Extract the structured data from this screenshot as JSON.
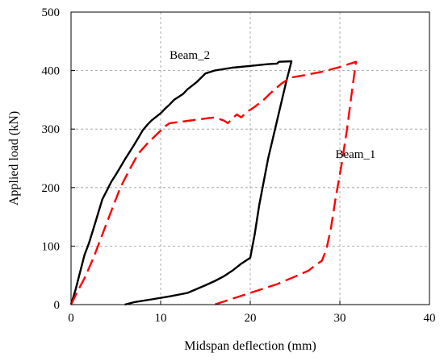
{
  "chart_data": {
    "type": "line",
    "title": "",
    "xlabel": "Midspan deflection (mm)",
    "ylabel": "Applied load (kN)",
    "xlim": [
      0,
      40
    ],
    "ylim": [
      0,
      500
    ],
    "xticks": [
      0,
      10,
      20,
      30,
      40
    ],
    "yticks": [
      0,
      100,
      200,
      300,
      400,
      500
    ],
    "grid": true,
    "legend": "none",
    "series": [
      {
        "name": "Beam_2",
        "color": "#000000",
        "line_style": "solid",
        "points": [
          [
            0,
            0
          ],
          [
            0.5,
            25
          ],
          [
            1,
            55
          ],
          [
            1.5,
            85
          ],
          [
            2,
            105
          ],
          [
            2.5,
            130
          ],
          [
            3,
            155
          ],
          [
            3.5,
            180
          ],
          [
            4,
            195
          ],
          [
            4.5,
            210
          ],
          [
            5,
            222
          ],
          [
            5.5,
            235
          ],
          [
            6,
            248
          ],
          [
            6.5,
            260
          ],
          [
            7,
            272
          ],
          [
            7.5,
            285
          ],
          [
            8,
            298
          ],
          [
            8.5,
            307
          ],
          [
            9,
            315
          ],
          [
            10,
            327
          ],
          [
            10.5,
            335
          ],
          [
            11,
            342
          ],
          [
            11.5,
            350
          ],
          [
            12,
            355
          ],
          [
            12.5,
            360
          ],
          [
            13,
            368
          ],
          [
            14,
            380
          ],
          [
            15,
            395
          ],
          [
            16,
            400
          ],
          [
            18,
            405
          ],
          [
            20,
            408
          ],
          [
            22,
            411
          ],
          [
            23,
            412
          ],
          [
            23.2,
            415
          ],
          [
            24.6,
            416
          ],
          [
            24,
            380
          ],
          [
            23,
            315
          ],
          [
            22,
            250
          ],
          [
            21,
            170
          ],
          [
            20.5,
            120
          ],
          [
            20,
            80
          ],
          [
            19,
            70
          ],
          [
            18,
            58
          ],
          [
            17,
            48
          ],
          [
            16,
            40
          ],
          [
            15,
            33
          ],
          [
            13,
            20
          ],
          [
            11,
            14
          ],
          [
            9,
            9
          ],
          [
            7,
            4
          ],
          [
            6,
            0
          ]
        ]
      },
      {
        "name": "Beam_1",
        "color": "#ff0000",
        "line_style": "dashed",
        "points": [
          [
            0,
            0
          ],
          [
            0.8,
            25
          ],
          [
            1.5,
            45
          ],
          [
            2.5,
            80
          ],
          [
            3.5,
            120
          ],
          [
            4.5,
            160
          ],
          [
            5.5,
            200
          ],
          [
            6.5,
            230
          ],
          [
            7.5,
            258
          ],
          [
            8.5,
            275
          ],
          [
            9.5,
            290
          ],
          [
            10.5,
            305
          ],
          [
            11,
            310
          ],
          [
            13,
            314
          ],
          [
            15,
            318
          ],
          [
            16,
            320
          ],
          [
            17,
            315
          ],
          [
            17.5,
            310
          ],
          [
            18,
            318
          ],
          [
            18.5,
            325
          ],
          [
            19,
            320
          ],
          [
            19.5,
            328
          ],
          [
            20.5,
            338
          ],
          [
            21.5,
            350
          ],
          [
            22.5,
            365
          ],
          [
            23.5,
            378
          ],
          [
            24.5,
            388
          ],
          [
            26,
            392
          ],
          [
            28,
            398
          ],
          [
            30,
            406
          ],
          [
            31.8,
            415
          ],
          [
            31.4,
            370
          ],
          [
            30.8,
            300
          ],
          [
            30.2,
            240
          ],
          [
            29.5,
            180
          ],
          [
            29,
            130
          ],
          [
            28.5,
            95
          ],
          [
            28,
            75
          ],
          [
            27.5,
            70
          ],
          [
            26.5,
            58
          ],
          [
            25,
            48
          ],
          [
            23,
            35
          ],
          [
            21,
            25
          ],
          [
            19,
            15
          ],
          [
            17,
            5
          ],
          [
            16,
            0
          ]
        ]
      }
    ],
    "annotations": [
      {
        "text": "Beam_2",
        "x": 11,
        "y": 420
      },
      {
        "text": "Beam_1",
        "x": 29.5,
        "y": 251
      }
    ]
  }
}
